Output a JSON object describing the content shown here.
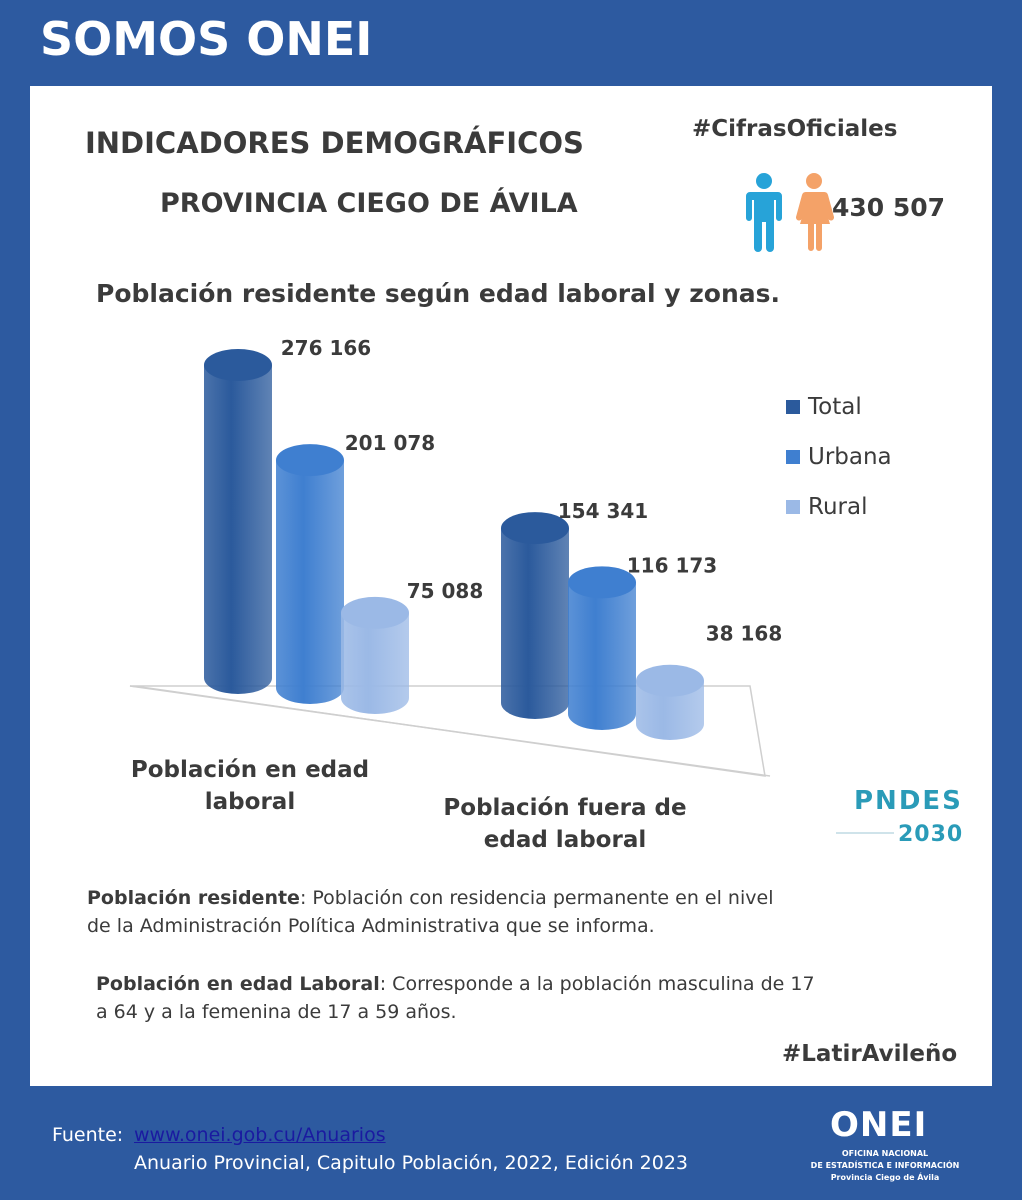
{
  "header": {
    "title": "SOMOS ONEI"
  },
  "panel": {
    "title": "INDICADORES DEMOGRÁFICOS",
    "subtitle": "PROVINCIA CIEGO DE ÁVILA",
    "hashtag_top": "#CifrasOficiales",
    "population_total": "430 507",
    "icons": [
      "male-person-icon",
      "female-person-icon"
    ]
  },
  "chart_data": {
    "type": "bar",
    "title": "Población residente según edad laboral y zonas.",
    "categories": [
      "Población en edad laboral",
      "Población fuera de edad laboral"
    ],
    "category_labels": [
      [
        "Población en edad",
        "laboral"
      ],
      [
        "Población fuera de",
        "edad laboral"
      ]
    ],
    "series": [
      {
        "name": "Total",
        "values": [
          276166,
          154341
        ],
        "labels": [
          "276 166",
          "154 341"
        ],
        "color": "#2b5a9c"
      },
      {
        "name": "Urbana",
        "values": [
          201078,
          116173
        ],
        "labels": [
          "201 078",
          "116 173"
        ],
        "color": "#3f7fd0"
      },
      {
        "name": "Rural",
        "values": [
          75088,
          38168
        ],
        "labels": [
          "75 088",
          "38 168"
        ],
        "color": "#9bb9e6"
      }
    ],
    "ylim": [
      0,
      300000
    ],
    "legend": "right",
    "style": "3d-cylinder"
  },
  "definitions": [
    {
      "term": "Población residente",
      "text": ": Población con residencia permanente en el nivel",
      "text2": "de la  Administración Política Administrativa que se informa."
    },
    {
      "term": "Población en edad Laboral",
      "text": ": Corresponde a la población masculina de 17",
      "text2": "a 64 y a la femenina de 17 a 59 años."
    }
  ],
  "hashtag_bottom": "#LatirAvileño",
  "pndes_logo": {
    "top": "PNDES",
    "bottom": "2030"
  },
  "footer": {
    "label": "Fuente:",
    "link": "www.onei.gob.cu/Anuarios",
    "source": "Anuario Provincial, Capitulo Población, 2022, Edición 2023"
  },
  "onei_logo": {
    "word": "ONEI",
    "line1": "OFICINA NACIONAL",
    "line2": "DE ESTADÍSTICA E INFORMACIÓN",
    "line3": "Provincia Ciego de Ávila"
  }
}
